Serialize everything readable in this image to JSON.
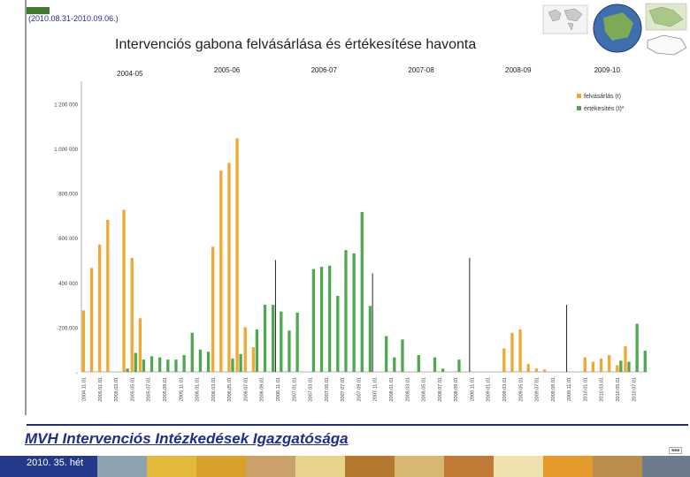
{
  "header": {
    "badge": "",
    "date_range": "(2010.08.31-2010.09.06.)",
    "title": "Intervenciós gabona felvásárlása és értékesítése havonta"
  },
  "footer": {
    "agency": "MVH Intervenciós Intézkedések Igazgatósága",
    "week": "2010. 35. hét"
  },
  "colors": {
    "purchase": "#f0a830",
    "sale": "#4ea84e",
    "accent": "#1c2f8c"
  },
  "chart_data": {
    "type": "bar",
    "title": "Intervenciós gabona felvásárlása és értékesítése havonta",
    "ylim": [
      0,
      1300000
    ],
    "yticks": [
      0,
      200000,
      400000,
      600000,
      800000,
      1000000,
      1200000
    ],
    "ytick_labels": [
      "-",
      "200 000",
      "400 000",
      "600 000",
      "800 000",
      "1 000 000",
      "1 200 000"
    ],
    "grid": false,
    "legend_position": "top-right",
    "seasons": [
      {
        "label": "2004-05",
        "start": 0
      },
      {
        "label": "2005-06",
        "start": 12
      },
      {
        "label": "2006-07",
        "start": 24
      },
      {
        "label": "2007-08",
        "start": 36
      },
      {
        "label": "2008-09",
        "start": 48
      },
      {
        "label": "2009-10",
        "start": 60
      }
    ],
    "categories": [
      "2004.11.01",
      "2004.12.01",
      "2005.01.01",
      "2005.02.01",
      "2005.03.01",
      "2005.04.01",
      "2005.05.01",
      "2005.06.01",
      "2005.07.01",
      "2005.08.01",
      "2005.09.01",
      "2005.10.01",
      "2005.11.01",
      "2005.12.01",
      "2006.01.01",
      "2006.02.01",
      "2006.03.01",
      "2006.04.01",
      "2006.05.01",
      "2006.06.01",
      "2006.07.01",
      "2006.08.01",
      "2006.09.01",
      "2006.10.01",
      "2006.11.01",
      "2006.12.01",
      "2007.01.01",
      "2007.02.01",
      "2007.03.01",
      "2007.04.01",
      "2007.05.01",
      "2007.06.01",
      "2007.07.01",
      "2007.08.01",
      "2007.09.01",
      "2007.10.01",
      "2007.11.01",
      "2007.12.01",
      "2008.01.01",
      "2008.02.01",
      "2008.03.01",
      "2008.04.01",
      "2008.05.01",
      "2008.06.01",
      "2008.07.01",
      "2008.08.01",
      "2008.09.01",
      "2008.10.01",
      "2008.11.01",
      "2008.12.01",
      "2009.01.01",
      "2009.02.01",
      "2009.03.01",
      "2009.04.01",
      "2009.05.01",
      "2009.06.01",
      "2009.07.01",
      "2009.08.01",
      "2009.09.01",
      "2009.10.01",
      "2009.11.01",
      "2009.12.01",
      "2010.01.01",
      "2010.02.01",
      "2010.03.01",
      "2010.04.01",
      "2010.05.01",
      "2010.06.01",
      "2010.07.01",
      "2010.08.01"
    ],
    "tick_labels": [
      "2004.11.01",
      "2005.01.01",
      "2005.03.01",
      "2005.05.01",
      "2005.07.01",
      "2005.09.01",
      "2005.11.01",
      "2006.01.01",
      "2006.03.01",
      "2006.05.01",
      "2006.07.01",
      "2006.09.01",
      "2006.11.01",
      "2007.01.01",
      "2007.03.01",
      "2007.05.01",
      "2007.07.01",
      "2007.09.01",
      "2007.11.01",
      "2008.01.01",
      "2008.03.01",
      "2008.05.01",
      "2008.07.01",
      "2008.09.01",
      "2008.11.01",
      "2009.01.01",
      "2009.03.01",
      "2009.05.01",
      "2009.07.01",
      "2009.09.01",
      "2009.11.01",
      "2010.01.01",
      "2010.03.01",
      "2010.05.01",
      "2010.07.01"
    ],
    "series": [
      {
        "name": "felvásárlás (t)",
        "values": [
          275000,
          465000,
          570000,
          680000,
          0,
          725000,
          510000,
          240000,
          0,
          0,
          0,
          0,
          0,
          0,
          0,
          0,
          560000,
          900000,
          935000,
          1045000,
          200000,
          110000,
          0,
          0,
          0,
          0,
          0,
          0,
          0,
          0,
          0,
          0,
          0,
          0,
          0,
          0,
          0,
          0,
          0,
          0,
          0,
          0,
          0,
          0,
          0,
          0,
          0,
          0,
          0,
          0,
          0,
          0,
          105000,
          175000,
          190000,
          35000,
          15000,
          10000,
          0,
          0,
          0,
          0,
          65000,
          45000,
          60000,
          75000,
          30000,
          115000,
          0,
          0
        ]
      },
      {
        "name": "értékesítés (t)*",
        "values": [
          0,
          0,
          0,
          0,
          0,
          15000,
          85000,
          55000,
          70000,
          65000,
          55000,
          55000,
          75000,
          175000,
          100000,
          90000,
          0,
          0,
          60000,
          80000,
          0,
          190000,
          300000,
          300000,
          270000,
          185000,
          265000,
          0,
          460000,
          470000,
          475000,
          340000,
          545000,
          530000,
          715000,
          295000,
          0,
          160000,
          65000,
          145000,
          0,
          75000,
          0,
          65000,
          15000,
          0,
          55000,
          0,
          0,
          0,
          0,
          0,
          0,
          0,
          0,
          0,
          0,
          0,
          0,
          0,
          0,
          0,
          0,
          0,
          0,
          0,
          50000,
          45000,
          215000,
          95000
        ]
      }
    ]
  }
}
